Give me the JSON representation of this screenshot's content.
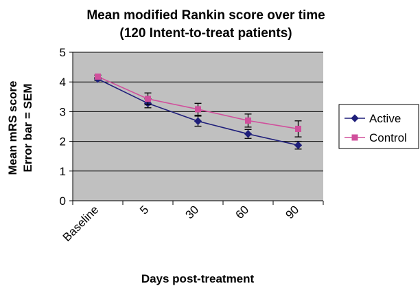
{
  "chart_data": {
    "type": "line",
    "title": "Mean modified Rankin score over time",
    "subtitle": "(120 Intent-to-treat patients)",
    "ylabel_line1": "Mean mRS score",
    "ylabel_line2": "Error bar = SEM",
    "xlabel": "Days post-treatment",
    "categories": [
      "Baseline",
      "5",
      "30",
      "60",
      "90"
    ],
    "y_ticks": [
      "0",
      "1",
      "2",
      "3",
      "4",
      "5"
    ],
    "ylim": [
      0,
      5
    ],
    "grid": "horizontal",
    "legend_position": "right",
    "plot_background": "#c0c0c0",
    "series": [
      {
        "name": "Active",
        "color": "#1f1f7a",
        "marker": "diamond",
        "values": [
          4.1,
          3.28,
          2.68,
          2.25,
          1.87
        ],
        "sem": [
          0.05,
          0.15,
          0.17,
          0.15,
          0.13
        ]
      },
      {
        "name": "Control",
        "color": "#d0509c",
        "marker": "square",
        "values": [
          4.18,
          3.43,
          3.08,
          2.7,
          2.42
        ],
        "sem": [
          0.05,
          0.2,
          0.2,
          0.22,
          0.27
        ]
      }
    ]
  }
}
